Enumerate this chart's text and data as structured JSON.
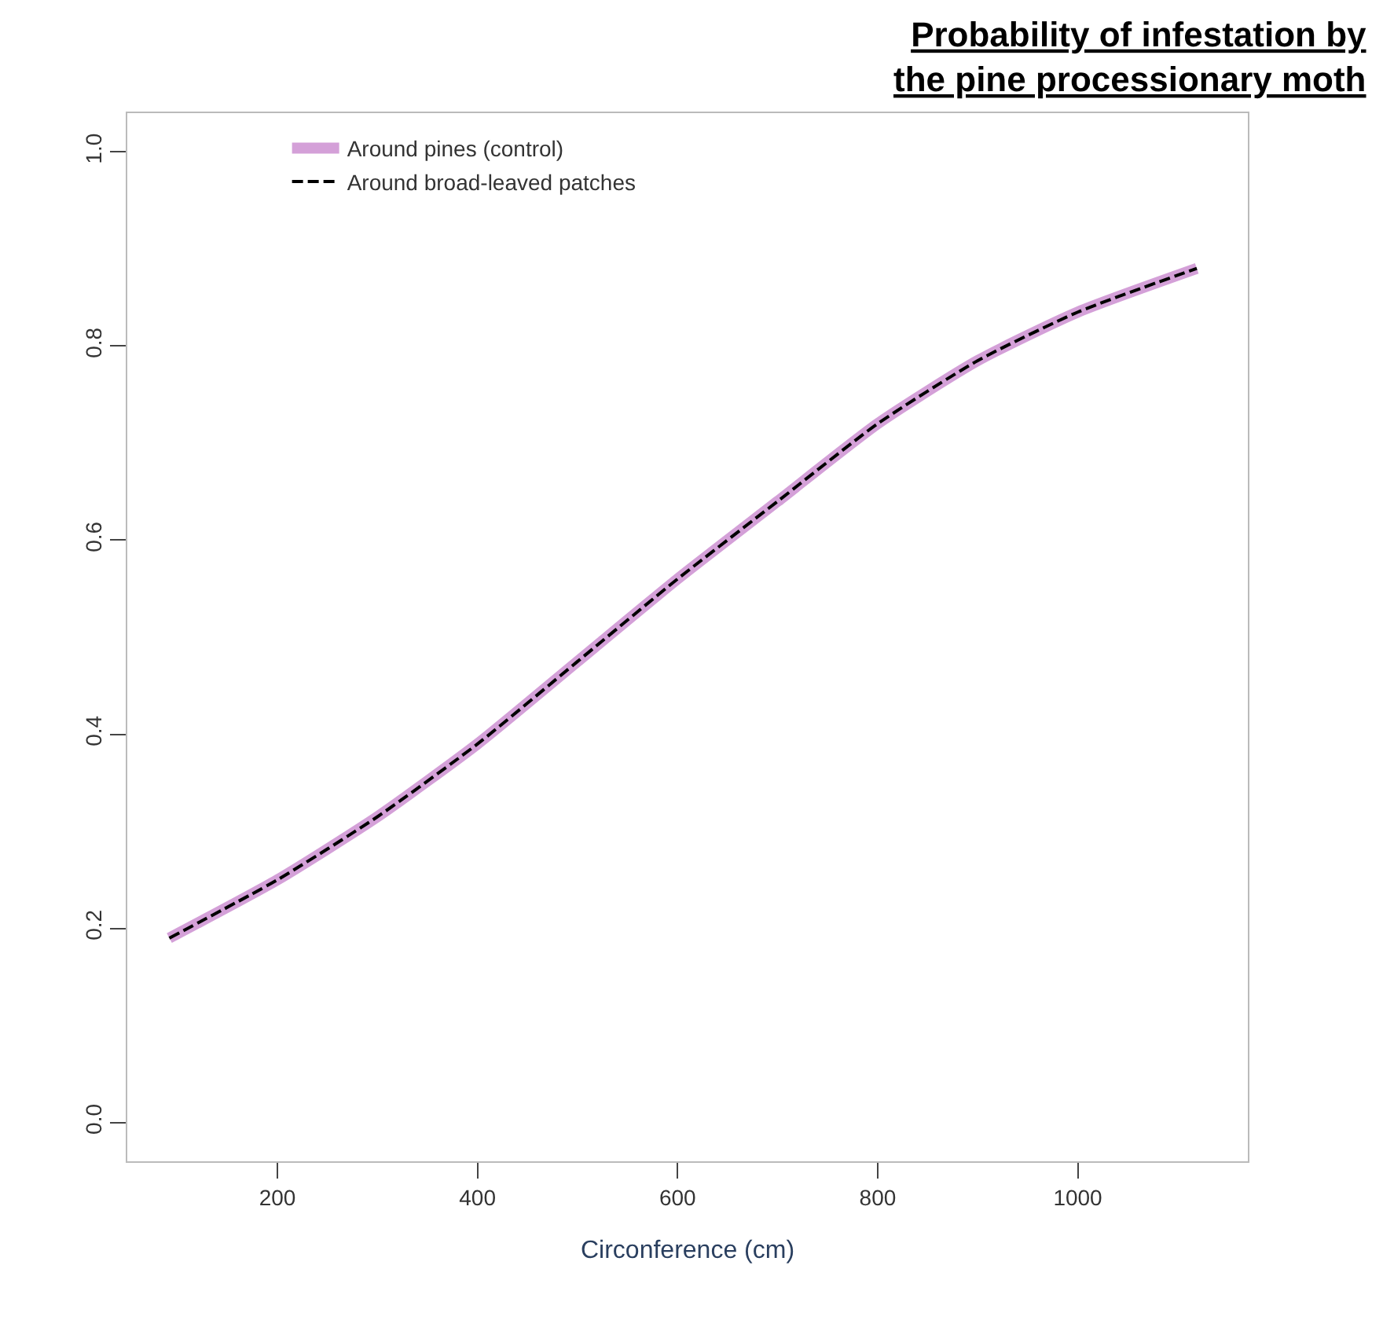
{
  "chart_data": {
    "type": "line",
    "title": "Probability of infestation by\nthe pine processionary moth",
    "xlabel": "Circonference (cm)",
    "x": [
      92,
      200,
      300,
      400,
      500,
      600,
      700,
      800,
      900,
      1000,
      1119
    ],
    "series": [
      {
        "name": "Around pines (control)",
        "color": "#d4a0d8",
        "line_style": "solid",
        "values": [
          0.19,
          0.25,
          0.315,
          0.39,
          0.475,
          0.56,
          0.64,
          0.72,
          0.785,
          0.835,
          0.88
        ]
      },
      {
        "name": "Around broad-leaved patches",
        "color": "#000000",
        "line_style": "dashed",
        "values": [
          0.19,
          0.25,
          0.315,
          0.39,
          0.475,
          0.56,
          0.64,
          0.72,
          0.785,
          0.835,
          0.88
        ]
      }
    ],
    "xlim": [
      50,
      1170
    ],
    "ylim": [
      -0.04,
      1.04
    ],
    "xticks": [
      200,
      400,
      600,
      800,
      1000
    ],
    "yticks": [
      {
        "value": 0,
        "label": "0.0"
      },
      {
        "value": 0.2,
        "label": "0.2"
      },
      {
        "value": 0.4,
        "label": "0.4"
      },
      {
        "value": 0.6,
        "label": "0.6"
      },
      {
        "value": 0.8,
        "label": "0.8"
      },
      {
        "value": 1,
        "label": "1.0"
      }
    ],
    "legend": "top left",
    "marker": "none"
  }
}
